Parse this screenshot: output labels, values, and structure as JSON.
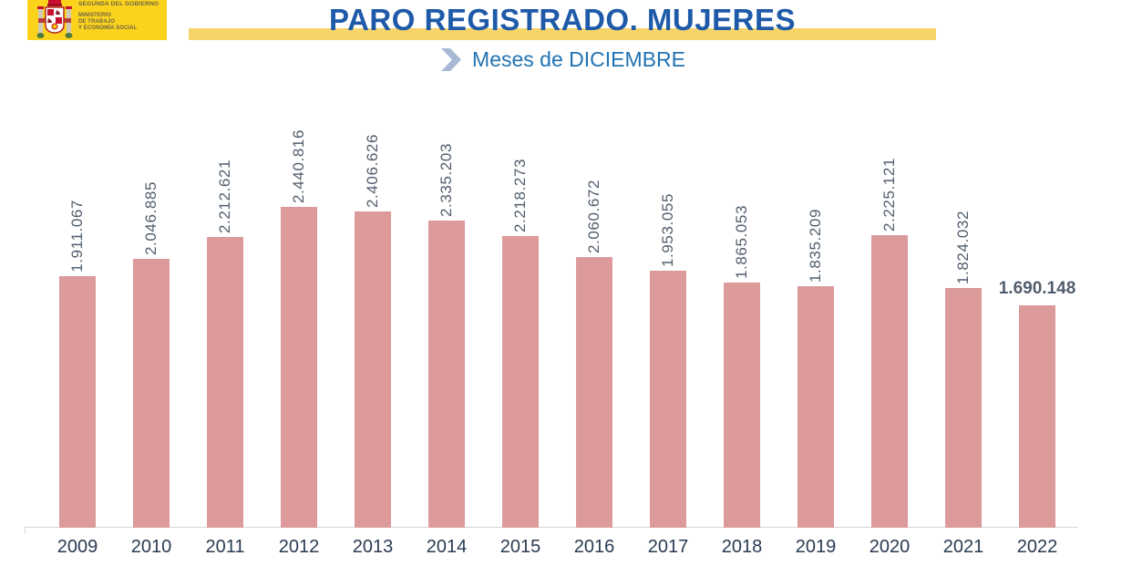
{
  "theme": {
    "logo_bg": "#FCD31C",
    "logo_text_color": "#6B6349",
    "band_color": "#F6D469",
    "title_color": "#1F5AA9",
    "subtitle_color": "#2173B3",
    "chevron_color": "#A8B9D4",
    "bar_color": "#DC9A9B",
    "value_label_color": "#515D6D",
    "year_label_color": "#2A3B52",
    "axis_color": "#D6D6D6"
  },
  "header": {
    "logo": {
      "line1": "SEGUNDA DEL GOBIERNO",
      "ministry_lines": [
        "MINISTERIO",
        "DE TRABAJO",
        "Y ECONOMÍA SOCIAL"
      ]
    },
    "title": "PARO REGISTRADO. MUJERES",
    "subtitle": "Meses de DICIEMBRE"
  },
  "chart_data": {
    "type": "bar",
    "title": "PARO REGISTRADO. MUJERES",
    "subtitle": "Meses de DICIEMBRE",
    "categories": [
      "2009",
      "2010",
      "2011",
      "2012",
      "2013",
      "2014",
      "2015",
      "2016",
      "2017",
      "2018",
      "2019",
      "2020",
      "2021",
      "2022"
    ],
    "values": [
      1911067,
      2046885,
      2212621,
      2440816,
      2406626,
      2335203,
      2218273,
      2060672,
      1953055,
      1865053,
      1835209,
      2225121,
      1824032,
      1690148
    ],
    "value_labels": [
      "1.911.067",
      "2.046.885",
      "2.212.621",
      "2.440.816",
      "2.406.626",
      "2.335.203",
      "2.218.273",
      "2.060.672",
      "1.953.055",
      "1.865.053",
      "1.835.209",
      "2.225.121",
      "1.824.032",
      "1.690.148"
    ],
    "xlabel": "",
    "ylabel": "",
    "ylim": [
      0,
      2440816
    ],
    "gridlines": false,
    "legend": "none",
    "value_label_orientation": "rotated-90-except-last",
    "highlight_index": 13
  }
}
